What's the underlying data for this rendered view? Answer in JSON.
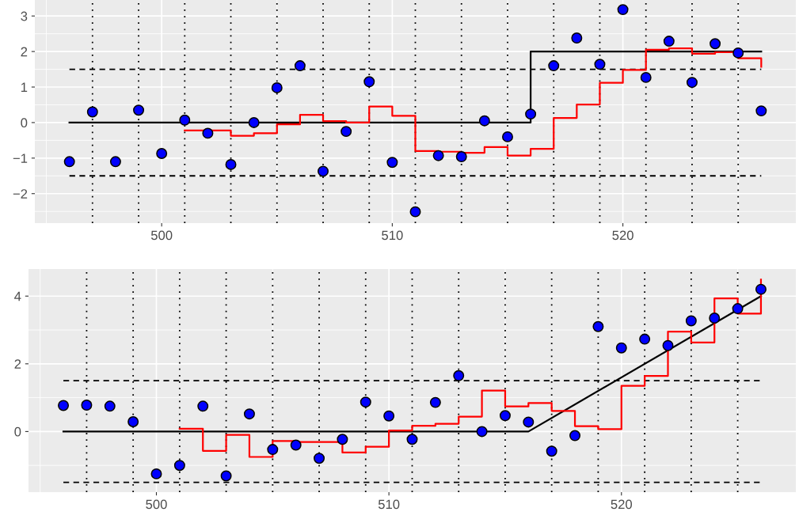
{
  "chart_data": [
    {
      "type": "line",
      "x": [
        496,
        497,
        498,
        499,
        500,
        501,
        502,
        503,
        504,
        505,
        506,
        507,
        508,
        509,
        510,
        511,
        512,
        513,
        514,
        515,
        516,
        517,
        518,
        519,
        520,
        521,
        522,
        523,
        524,
        525,
        526
      ],
      "series": [
        {
          "type": "scatter",
          "color": "#0000ff",
          "marker": "circle",
          "values": [
            -1.1,
            0.3,
            -1.1,
            0.35,
            -0.87,
            0.07,
            -0.3,
            -1.18,
            0.0,
            0.98,
            1.6,
            -1.37,
            -0.25,
            1.15,
            -1.12,
            -2.51,
            -0.93,
            -0.96,
            0.05,
            -0.4,
            0.24,
            1.6,
            2.38,
            1.64,
            3.18,
            1.27,
            2.29,
            1.13,
            2.22,
            1.96,
            0.33
          ]
        },
        {
          "color": "#000000",
          "line_style": "solid",
          "x": [
            496,
            516,
            516,
            526
          ],
          "values": [
            0,
            0,
            2,
            2
          ]
        },
        {
          "type": "step",
          "color": "#ff0000",
          "line_style": "solid",
          "x": [
            501,
            502,
            503,
            504,
            505,
            506,
            507,
            508,
            509,
            510,
            511,
            512,
            513,
            514,
            515,
            516,
            517,
            518,
            519,
            520,
            521,
            522,
            523,
            524,
            525,
            526
          ],
          "values": [
            -0.22,
            -0.22,
            -0.37,
            -0.3,
            -0.05,
            0.22,
            0.04,
            0.0,
            0.45,
            0.19,
            -0.8,
            -0.82,
            -0.85,
            -0.69,
            -0.93,
            -0.74,
            0.13,
            0.51,
            1.12,
            1.48,
            2.05,
            2.09,
            1.94,
            1.98,
            1.81,
            1.57
          ]
        }
      ],
      "xlim": [
        494.5,
        527.5
      ],
      "xticks": [
        500,
        510,
        520
      ],
      "ylim": [
        -2.83,
        3.45
      ],
      "yticks": [
        -2,
        -1,
        0,
        1,
        2,
        3
      ],
      "grid": true,
      "ref_lines": [
        {
          "axis": "y",
          "value": 1.5,
          "color": "#000000",
          "line_style": "dashed"
        },
        {
          "axis": "y",
          "value": -1.5,
          "color": "#000000",
          "line_style": "dashed"
        },
        {
          "axis": "x",
          "value": 497,
          "color": "#000000",
          "line_style": "dotted"
        },
        {
          "axis": "x",
          "value": 499,
          "color": "#000000",
          "line_style": "dotted"
        },
        {
          "axis": "x",
          "value": 501,
          "color": "#000000",
          "line_style": "dotted"
        },
        {
          "axis": "x",
          "value": 503,
          "color": "#000000",
          "line_style": "dotted"
        },
        {
          "axis": "x",
          "value": 505,
          "color": "#000000",
          "line_style": "dotted"
        },
        {
          "axis": "x",
          "value": 507,
          "color": "#000000",
          "line_style": "dotted"
        },
        {
          "axis": "x",
          "value": 509,
          "color": "#000000",
          "line_style": "dotted"
        },
        {
          "axis": "x",
          "value": 511,
          "color": "#000000",
          "line_style": "dotted"
        },
        {
          "axis": "x",
          "value": 513,
          "color": "#000000",
          "line_style": "dotted"
        },
        {
          "axis": "x",
          "value": 515,
          "color": "#000000",
          "line_style": "dotted"
        },
        {
          "axis": "x",
          "value": 517,
          "color": "#000000",
          "line_style": "dotted"
        },
        {
          "axis": "x",
          "value": 519,
          "color": "#000000",
          "line_style": "dotted"
        },
        {
          "axis": "x",
          "value": 521,
          "color": "#000000",
          "line_style": "dotted"
        },
        {
          "axis": "x",
          "value": 523,
          "color": "#000000",
          "line_style": "dotted"
        },
        {
          "axis": "x",
          "value": 525,
          "color": "#000000",
          "line_style": "dotted"
        }
      ]
    },
    {
      "type": "line",
      "x": [
        496,
        497,
        498,
        499,
        500,
        501,
        502,
        503,
        504,
        505,
        506,
        507,
        508,
        509,
        510,
        511,
        512,
        513,
        514,
        515,
        516,
        517,
        518,
        519,
        520,
        521,
        522,
        523,
        524,
        525,
        526
      ],
      "series": [
        {
          "type": "scatter",
          "color": "#0000ff",
          "marker": "circle",
          "values": [
            0.77,
            0.78,
            0.75,
            0.29,
            -1.25,
            -1.0,
            0.75,
            -1.31,
            0.52,
            -0.53,
            -0.4,
            -0.79,
            -0.23,
            0.87,
            0.46,
            -0.23,
            0.86,
            1.65,
            0.0,
            0.47,
            0.28,
            -0.58,
            -0.12,
            3.1,
            2.47,
            2.73,
            2.54,
            3.27,
            3.35,
            3.63,
            4.2
          ]
        },
        {
          "color": "#000000",
          "line_style": "solid",
          "x": [
            496,
            516,
            526
          ],
          "values": [
            0,
            0,
            4
          ]
        },
        {
          "type": "step",
          "color": "#ff0000",
          "line_style": "solid",
          "x": [
            501,
            502,
            503,
            504,
            505,
            506,
            507,
            508,
            509,
            510,
            511,
            512,
            513,
            514,
            515,
            516,
            517,
            518,
            519,
            520,
            521,
            522,
            523,
            524,
            525,
            526
          ],
          "values": [
            0.08,
            -0.57,
            -0.1,
            -0.75,
            -0.28,
            -0.31,
            -0.31,
            -0.62,
            -0.45,
            0.03,
            0.17,
            0.23,
            0.44,
            1.21,
            0.74,
            0.84,
            0.61,
            0.16,
            0.07,
            1.35,
            1.64,
            2.95,
            2.63,
            3.93,
            3.48,
            4.49
          ]
        }
      ],
      "xlim": [
        494.5,
        527.5
      ],
      "xticks": [
        500,
        510,
        520
      ],
      "ylim": [
        -1.79,
        4.8
      ],
      "yticks": [
        0,
        2,
        4
      ],
      "grid": true,
      "ref_lines": [
        {
          "axis": "y",
          "value": 1.5,
          "color": "#000000",
          "line_style": "dashed"
        },
        {
          "axis": "y",
          "value": -1.5,
          "color": "#000000",
          "line_style": "dashed"
        },
        {
          "axis": "x",
          "value": 497,
          "color": "#000000",
          "line_style": "dotted"
        },
        {
          "axis": "x",
          "value": 499,
          "color": "#000000",
          "line_style": "dotted"
        },
        {
          "axis": "x",
          "value": 501,
          "color": "#000000",
          "line_style": "dotted"
        },
        {
          "axis": "x",
          "value": 503,
          "color": "#000000",
          "line_style": "dotted"
        },
        {
          "axis": "x",
          "value": 505,
          "color": "#000000",
          "line_style": "dotted"
        },
        {
          "axis": "x",
          "value": 507,
          "color": "#000000",
          "line_style": "dotted"
        },
        {
          "axis": "x",
          "value": 509,
          "color": "#000000",
          "line_style": "dotted"
        },
        {
          "axis": "x",
          "value": 511,
          "color": "#000000",
          "line_style": "dotted"
        },
        {
          "axis": "x",
          "value": 513,
          "color": "#000000",
          "line_style": "dotted"
        },
        {
          "axis": "x",
          "value": 515,
          "color": "#000000",
          "line_style": "dotted"
        },
        {
          "axis": "x",
          "value": 517,
          "color": "#000000",
          "line_style": "dotted"
        },
        {
          "axis": "x",
          "value": 519,
          "color": "#000000",
          "line_style": "dotted"
        },
        {
          "axis": "x",
          "value": 521,
          "color": "#000000",
          "line_style": "dotted"
        },
        {
          "axis": "x",
          "value": 523,
          "color": "#000000",
          "line_style": "dotted"
        },
        {
          "axis": "x",
          "value": 525,
          "color": "#000000",
          "line_style": "dotted"
        }
      ]
    }
  ]
}
